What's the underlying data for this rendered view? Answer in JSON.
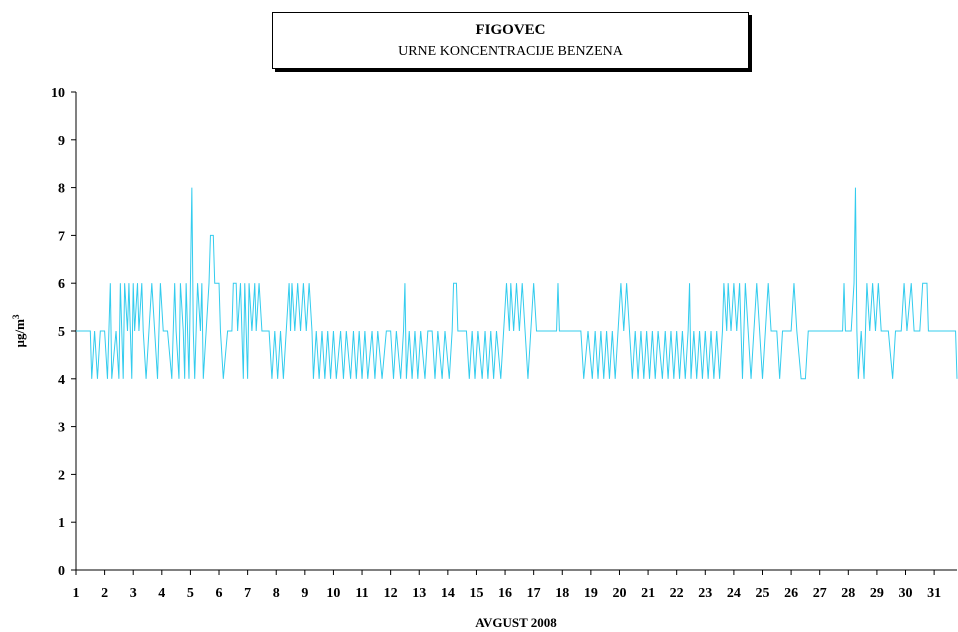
{
  "chart_data": {
    "type": "line",
    "title": "FIGOVEC",
    "subtitle": "URNE KONCENTRACIJE BENZENA",
    "xlabel": "AVGUST 2008",
    "ylabel": "µg/m³",
    "ylabel_parts": {
      "base": "µg/m",
      "sup": "3"
    },
    "ylim": [
      0,
      10
    ],
    "yticks": [
      0,
      1,
      2,
      3,
      4,
      5,
      6,
      7,
      8,
      9,
      10
    ],
    "xlim": [
      1,
      31.8
    ],
    "xticks": [
      "1",
      "2",
      "3",
      "4",
      "5",
      "6",
      "7",
      "8",
      "9",
      "10",
      "11",
      "12",
      "13",
      "14",
      "15",
      "16",
      "17",
      "18",
      "19",
      "20",
      "21",
      "22",
      "23",
      "24",
      "25",
      "26",
      "27",
      "28",
      "29",
      "30",
      "31"
    ],
    "grid": false,
    "line_color": "#33ccee",
    "series": [
      {
        "x_unit": "day of August 2008",
        "points": [
          [
            1.0,
            5
          ],
          [
            1.5,
            5
          ],
          [
            1.55,
            4
          ],
          [
            1.65,
            5
          ],
          [
            1.75,
            4
          ],
          [
            1.85,
            5
          ],
          [
            2.0,
            5
          ],
          [
            2.1,
            4
          ],
          [
            2.2,
            6
          ],
          [
            2.25,
            4
          ],
          [
            2.4,
            5
          ],
          [
            2.5,
            4
          ],
          [
            2.55,
            6
          ],
          [
            2.65,
            4
          ],
          [
            2.7,
            6
          ],
          [
            2.8,
            5
          ],
          [
            2.85,
            6
          ],
          [
            2.95,
            4
          ],
          [
            3.0,
            6
          ],
          [
            3.05,
            5
          ],
          [
            3.15,
            6
          ],
          [
            3.2,
            5
          ],
          [
            3.3,
            6
          ],
          [
            3.35,
            5
          ],
          [
            3.45,
            4
          ],
          [
            3.55,
            5
          ],
          [
            3.65,
            6
          ],
          [
            3.75,
            5
          ],
          [
            3.85,
            4
          ],
          [
            3.95,
            6
          ],
          [
            4.05,
            5
          ],
          [
            4.2,
            5
          ],
          [
            4.35,
            4
          ],
          [
            4.45,
            6
          ],
          [
            4.5,
            5
          ],
          [
            4.6,
            4
          ],
          [
            4.65,
            6
          ],
          [
            4.75,
            5
          ],
          [
            4.8,
            4
          ],
          [
            4.85,
            6
          ],
          [
            4.95,
            4
          ],
          [
            5.0,
            6
          ],
          [
            5.05,
            8
          ],
          [
            5.1,
            5
          ],
          [
            5.15,
            4
          ],
          [
            5.25,
            6
          ],
          [
            5.35,
            5
          ],
          [
            5.4,
            6
          ],
          [
            5.45,
            4
          ],
          [
            5.55,
            5
          ],
          [
            5.65,
            6
          ],
          [
            5.7,
            7
          ],
          [
            5.8,
            7
          ],
          [
            5.85,
            6
          ],
          [
            6.0,
            6
          ],
          [
            6.05,
            5
          ],
          [
            6.15,
            4
          ],
          [
            6.3,
            5
          ],
          [
            6.45,
            5
          ],
          [
            6.5,
            6
          ],
          [
            6.6,
            6
          ],
          [
            6.65,
            5
          ],
          [
            6.75,
            6
          ],
          [
            6.85,
            4
          ],
          [
            6.9,
            6
          ],
          [
            7.0,
            4
          ],
          [
            7.05,
            6
          ],
          [
            7.15,
            5
          ],
          [
            7.25,
            6
          ],
          [
            7.3,
            5
          ],
          [
            7.4,
            6
          ],
          [
            7.5,
            5
          ],
          [
            7.7,
            5
          ],
          [
            7.75,
            5
          ],
          [
            7.85,
            4
          ],
          [
            7.95,
            5
          ],
          [
            8.05,
            4
          ],
          [
            8.15,
            5
          ],
          [
            8.25,
            4
          ],
          [
            8.35,
            5
          ],
          [
            8.45,
            6
          ],
          [
            8.5,
            5
          ],
          [
            8.55,
            6
          ],
          [
            8.65,
            5
          ],
          [
            8.75,
            6
          ],
          [
            8.85,
            5
          ],
          [
            8.95,
            6
          ],
          [
            9.05,
            5
          ],
          [
            9.15,
            6
          ],
          [
            9.25,
            5
          ],
          [
            9.3,
            4
          ],
          [
            9.4,
            5
          ],
          [
            9.5,
            4
          ],
          [
            9.6,
            5
          ],
          [
            9.7,
            4
          ],
          [
            9.8,
            5
          ],
          [
            9.9,
            4
          ],
          [
            10.0,
            5
          ],
          [
            10.1,
            4
          ],
          [
            10.25,
            5
          ],
          [
            10.35,
            4
          ],
          [
            10.45,
            5
          ],
          [
            10.6,
            4
          ],
          [
            10.7,
            5
          ],
          [
            10.8,
            4
          ],
          [
            10.9,
            5
          ],
          [
            11.0,
            4
          ],
          [
            11.1,
            5
          ],
          [
            11.2,
            4
          ],
          [
            11.35,
            5
          ],
          [
            11.45,
            4
          ],
          [
            11.55,
            5
          ],
          [
            11.7,
            4
          ],
          [
            11.85,
            5
          ],
          [
            12.0,
            5
          ],
          [
            12.1,
            4
          ],
          [
            12.2,
            5
          ],
          [
            12.35,
            4
          ],
          [
            12.45,
            5
          ],
          [
            12.5,
            6
          ],
          [
            12.55,
            4
          ],
          [
            12.65,
            5
          ],
          [
            12.75,
            4
          ],
          [
            12.85,
            5
          ],
          [
            12.95,
            4
          ],
          [
            13.05,
            5
          ],
          [
            13.2,
            4
          ],
          [
            13.3,
            5
          ],
          [
            13.45,
            5
          ],
          [
            13.55,
            4
          ],
          [
            13.65,
            5
          ],
          [
            13.8,
            4
          ],
          [
            13.9,
            5
          ],
          [
            14.05,
            4
          ],
          [
            14.15,
            5
          ],
          [
            14.2,
            6
          ],
          [
            14.3,
            6
          ],
          [
            14.35,
            5
          ],
          [
            14.5,
            5
          ],
          [
            14.65,
            5
          ],
          [
            14.75,
            4
          ],
          [
            14.85,
            5
          ],
          [
            14.95,
            4
          ],
          [
            15.05,
            5
          ],
          [
            15.2,
            4
          ],
          [
            15.3,
            5
          ],
          [
            15.4,
            4
          ],
          [
            15.5,
            5
          ],
          [
            15.6,
            4
          ],
          [
            15.7,
            5
          ],
          [
            15.85,
            4
          ],
          [
            15.95,
            5
          ],
          [
            16.05,
            6
          ],
          [
            16.15,
            5
          ],
          [
            16.2,
            6
          ],
          [
            16.3,
            5
          ],
          [
            16.4,
            6
          ],
          [
            16.5,
            5
          ],
          [
            16.6,
            6
          ],
          [
            16.7,
            5
          ],
          [
            16.8,
            4
          ],
          [
            16.9,
            5
          ],
          [
            17.0,
            6
          ],
          [
            17.1,
            5
          ],
          [
            17.5,
            5
          ],
          [
            17.8,
            5
          ],
          [
            17.85,
            6
          ],
          [
            17.9,
            5
          ],
          [
            18.5,
            5
          ],
          [
            18.65,
            5
          ],
          [
            18.75,
            4
          ],
          [
            18.9,
            5
          ],
          [
            19.05,
            4
          ],
          [
            19.15,
            5
          ],
          [
            19.25,
            4
          ],
          [
            19.35,
            5
          ],
          [
            19.45,
            4
          ],
          [
            19.55,
            5
          ],
          [
            19.65,
            4
          ],
          [
            19.75,
            5
          ],
          [
            19.85,
            4
          ],
          [
            19.95,
            5
          ],
          [
            20.05,
            6
          ],
          [
            20.15,
            5
          ],
          [
            20.25,
            6
          ],
          [
            20.35,
            5
          ],
          [
            20.45,
            4
          ],
          [
            20.55,
            5
          ],
          [
            20.65,
            4
          ],
          [
            20.75,
            5
          ],
          [
            20.85,
            4
          ],
          [
            20.95,
            5
          ],
          [
            21.05,
            4
          ],
          [
            21.15,
            5
          ],
          [
            21.25,
            4
          ],
          [
            21.35,
            5
          ],
          [
            21.5,
            4
          ],
          [
            21.6,
            5
          ],
          [
            21.7,
            4
          ],
          [
            21.8,
            5
          ],
          [
            21.9,
            4
          ],
          [
            22.0,
            5
          ],
          [
            22.1,
            4
          ],
          [
            22.2,
            5
          ],
          [
            22.3,
            4
          ],
          [
            22.4,
            5
          ],
          [
            22.45,
            6
          ],
          [
            22.5,
            4
          ],
          [
            22.6,
            5
          ],
          [
            22.7,
            4
          ],
          [
            22.8,
            5
          ],
          [
            22.9,
            4
          ],
          [
            23.0,
            5
          ],
          [
            23.1,
            4
          ],
          [
            23.2,
            5
          ],
          [
            23.3,
            4
          ],
          [
            23.4,
            5
          ],
          [
            23.5,
            4
          ],
          [
            23.6,
            5
          ],
          [
            23.65,
            6
          ],
          [
            23.75,
            5
          ],
          [
            23.8,
            6
          ],
          [
            23.9,
            5
          ],
          [
            24.0,
            6
          ],
          [
            24.1,
            5
          ],
          [
            24.2,
            6
          ],
          [
            24.3,
            4
          ],
          [
            24.4,
            6
          ],
          [
            24.5,
            5
          ],
          [
            24.6,
            4
          ],
          [
            24.7,
            5
          ],
          [
            24.8,
            6
          ],
          [
            24.9,
            5
          ],
          [
            25.0,
            4
          ],
          [
            25.1,
            5
          ],
          [
            25.2,
            6
          ],
          [
            25.3,
            5
          ],
          [
            25.5,
            5
          ],
          [
            25.6,
            4
          ],
          [
            25.7,
            5
          ],
          [
            26.0,
            5
          ],
          [
            26.1,
            6
          ],
          [
            26.2,
            5
          ],
          [
            26.35,
            4
          ],
          [
            26.5,
            4
          ],
          [
            26.6,
            5
          ],
          [
            27.0,
            5
          ],
          [
            27.8,
            5
          ],
          [
            27.85,
            6
          ],
          [
            27.9,
            5
          ],
          [
            28.1,
            5
          ],
          [
            28.2,
            6
          ],
          [
            28.25,
            8
          ],
          [
            28.3,
            5
          ],
          [
            28.35,
            4
          ],
          [
            28.45,
            5
          ],
          [
            28.55,
            4
          ],
          [
            28.65,
            6
          ],
          [
            28.75,
            5
          ],
          [
            28.85,
            6
          ],
          [
            28.95,
            5
          ],
          [
            29.05,
            6
          ],
          [
            29.15,
            5
          ],
          [
            29.4,
            5
          ],
          [
            29.55,
            4
          ],
          [
            29.65,
            5
          ],
          [
            29.85,
            5
          ],
          [
            29.95,
            6
          ],
          [
            30.05,
            5
          ],
          [
            30.2,
            6
          ],
          [
            30.3,
            5
          ],
          [
            30.5,
            5
          ],
          [
            30.6,
            6
          ],
          [
            30.75,
            6
          ],
          [
            30.8,
            5
          ],
          [
            31.0,
            5
          ],
          [
            31.75,
            5
          ],
          [
            31.8,
            4
          ]
        ]
      }
    ]
  }
}
